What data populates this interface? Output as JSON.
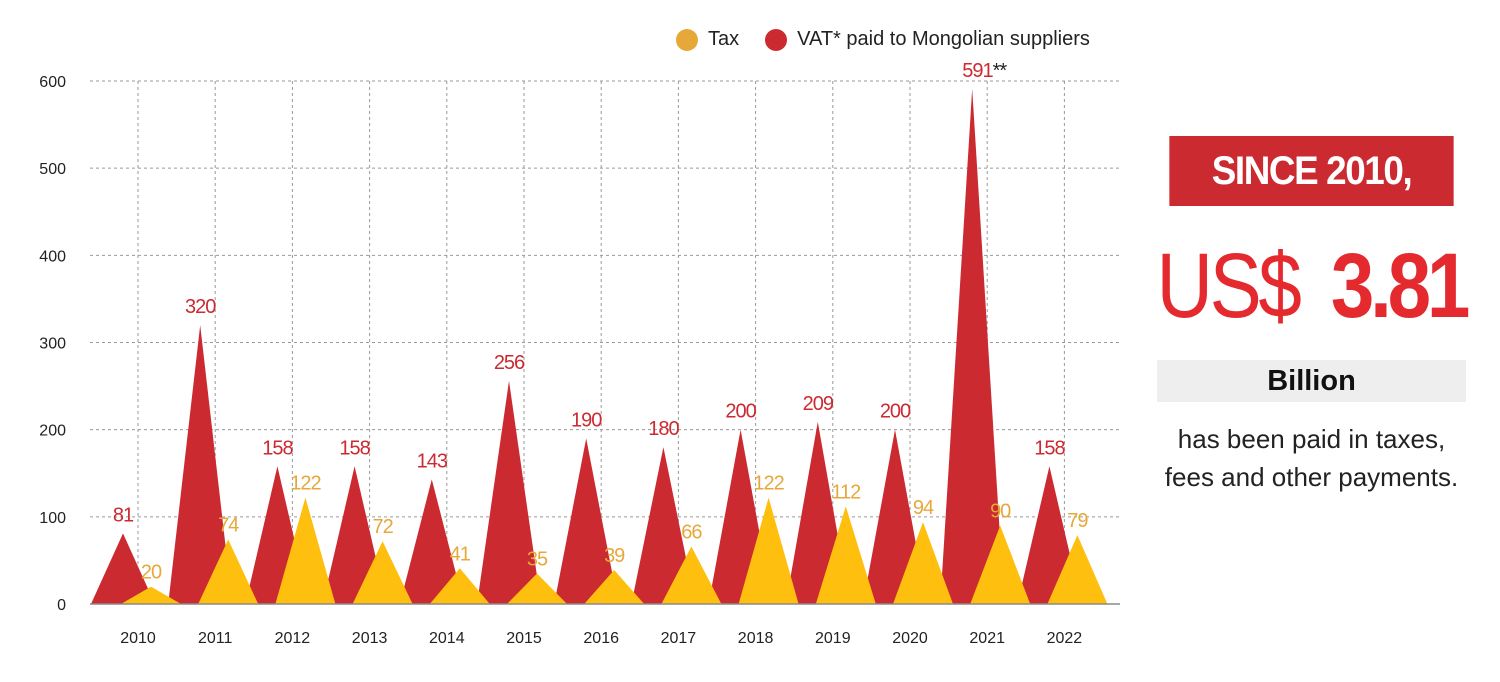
{
  "legend": [
    {
      "name": "Tax",
      "color": "#e7a83a"
    },
    {
      "name": "VAT* paid to Mongolian suppliers",
      "color": "#cc2a31"
    }
  ],
  "chart_data": {
    "type": "area",
    "title": "",
    "xlabel": "",
    "ylabel": "",
    "ylim": [
      0,
      600
    ],
    "yticks": [
      0,
      100,
      200,
      300,
      400,
      500,
      600
    ],
    "grid": true,
    "legend_position": "top-right",
    "categories": [
      "2010",
      "2011",
      "2012",
      "2013",
      "2014",
      "2015",
      "2016",
      "2017",
      "2018",
      "2019",
      "2020",
      "2021",
      "2022"
    ],
    "series": [
      {
        "name": "VAT* paid to Mongolian suppliers",
        "color": "#cc2a31",
        "label_color": "#cc2a31",
        "values": [
          81,
          320,
          158,
          158,
          143,
          256,
          190,
          180,
          200,
          209,
          200,
          591,
          158
        ],
        "labels": [
          "81",
          "320",
          "158",
          "158",
          "143",
          "256",
          "190",
          "180",
          "200",
          "209",
          "200",
          "591**",
          "158"
        ]
      },
      {
        "name": "Tax",
        "color": "#ffbf0f",
        "label_color": "#e7a83a",
        "values": [
          20,
          74,
          122,
          72,
          41,
          35,
          39,
          66,
          122,
          112,
          94,
          90,
          79
        ],
        "labels": [
          "20",
          "74",
          "122",
          "72",
          "41",
          "35",
          "39",
          "66",
          "122",
          "112",
          "94",
          "90",
          "79"
        ]
      }
    ]
  },
  "panel": {
    "since": "SINCE 2010,",
    "currency": "US$",
    "amount": "3.81",
    "unit": "Billion",
    "description": "has been paid in taxes, fees and other payments."
  }
}
